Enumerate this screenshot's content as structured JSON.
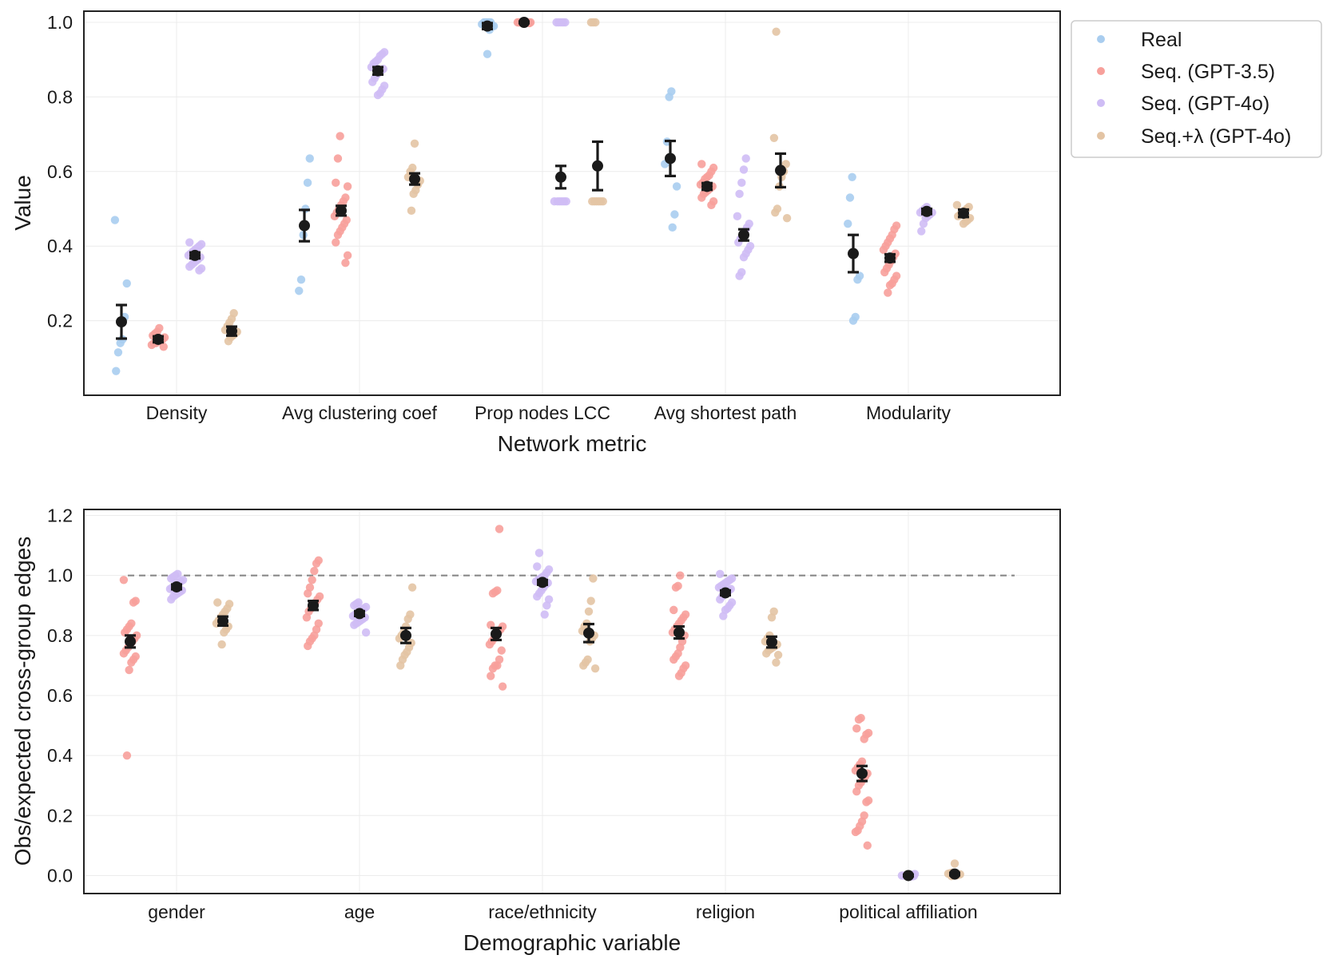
{
  "legend": {
    "entries": [
      {
        "label": "Real",
        "color": "#a9cdef"
      },
      {
        "label": "Seq. (GPT-3.5)",
        "color": "#f7a09b"
      },
      {
        "label": "Seq. (GPT-4o)",
        "color": "#cfbdf5"
      },
      {
        "label": "Seq.+λ (GPT-4o)",
        "color": "#e3c4a4"
      }
    ]
  },
  "chart_data": [
    {
      "type": "scatter",
      "subtype": "strip-plot-with-mean-and-error-bars",
      "title": "",
      "xlabel": "Network metric",
      "ylabel": "Value",
      "ylim": [
        0.0,
        1.03
      ],
      "yticks": [
        0.2,
        0.4,
        0.6,
        0.8,
        1.0
      ],
      "ytick_labels": [
        "0.2",
        "0.4",
        "0.6",
        "0.8",
        "1.0"
      ],
      "categories": [
        "Density",
        "Avg clustering coef",
        "Prop nodes LCC",
        "Avg shortest path",
        "Modularity"
      ],
      "grid": true,
      "legend_position": "outside top-right",
      "series": [
        {
          "name": "Real",
          "mean": [
            0.197,
            0.455,
            0.99,
            0.635,
            0.38
          ],
          "err": [
            0.045,
            0.042,
            0.008,
            0.047,
            0.05
          ],
          "points": [
            [
              0.47,
              0.3,
              0.21,
              0.15,
              0.14,
              0.115,
              0.065
            ],
            [
              0.635,
              0.57,
              0.5,
              0.43,
              0.31,
              0.28
            ],
            [
              1.0,
              1.0,
              1.0,
              1.0,
              0.995,
              0.99,
              0.99,
              0.98,
              0.915
            ],
            [
              0.815,
              0.8,
              0.68,
              0.62,
              0.56,
              0.485,
              0.45
            ],
            [
              0.585,
              0.53,
              0.46,
              0.32,
              0.31,
              0.21,
              0.2
            ]
          ]
        },
        {
          "name": "Seq. (GPT-3.5)",
          "mean": [
            0.15,
            0.495,
            1.0,
            0.56,
            0.368
          ],
          "err": [
            0.008,
            0.013,
            0.002,
            0.009,
            0.01
          ],
          "points": [
            [
              0.18,
              0.17,
              0.165,
              0.16,
              0.155,
              0.15,
              0.15,
              0.145,
              0.14,
              0.14,
              0.135,
              0.13
            ],
            [
              0.695,
              0.635,
              0.57,
              0.56,
              0.53,
              0.52,
              0.51,
              0.5,
              0.49,
              0.48,
              0.47,
              0.46,
              0.45,
              0.44,
              0.43,
              0.41,
              0.375,
              0.355
            ],
            [
              1.0,
              1.0,
              1.0,
              1.0,
              1.0,
              1.0,
              1.0,
              1.0,
              1.0,
              0.998
            ],
            [
              0.62,
              0.61,
              0.6,
              0.59,
              0.585,
              0.58,
              0.57,
              0.565,
              0.56,
              0.555,
              0.55,
              0.545,
              0.54,
              0.53,
              0.52,
              0.51
            ],
            [
              0.455,
              0.445,
              0.43,
              0.42,
              0.41,
              0.4,
              0.39,
              0.38,
              0.37,
              0.36,
              0.35,
              0.34,
              0.33,
              0.32,
              0.31,
              0.3,
              0.295,
              0.275
            ]
          ]
        },
        {
          "name": "Seq. (GPT-4o)",
          "mean": [
            0.375,
            0.87,
            0.585,
            0.43,
            0.493
          ],
          "err": [
            0.008,
            0.01,
            0.03,
            0.015,
            0.007
          ],
          "points": [
            [
              0.41,
              0.405,
              0.4,
              0.395,
              0.39,
              0.385,
              0.38,
              0.375,
              0.37,
              0.365,
              0.36,
              0.355,
              0.35,
              0.345,
              0.34,
              0.335
            ],
            [
              0.92,
              0.915,
              0.91,
              0.9,
              0.895,
              0.89,
              0.88,
              0.875,
              0.87,
              0.865,
              0.86,
              0.85,
              0.84,
              0.83,
              0.82,
              0.81,
              0.805
            ],
            [
              1.0,
              1.0,
              1.0,
              1.0,
              1.0,
              0.52,
              0.52,
              0.52,
              0.52,
              0.52,
              0.52
            ],
            [
              0.635,
              0.605,
              0.57,
              0.54,
              0.48,
              0.46,
              0.45,
              0.44,
              0.43,
              0.42,
              0.41,
              0.4,
              0.39,
              0.38,
              0.37,
              0.33,
              0.32
            ],
            [
              0.505,
              0.5,
              0.495,
              0.49,
              0.49,
              0.485,
              0.48,
              0.475,
              0.46,
              0.44
            ]
          ]
        },
        {
          "name": "Seq.+λ (GPT-4o)",
          "mean": [
            0.172,
            0.58,
            0.615,
            0.603,
            0.488
          ],
          "err": [
            0.012,
            0.015,
            0.065,
            0.045,
            0.01
          ],
          "points": [
            [
              0.22,
              0.205,
              0.195,
              0.185,
              0.175,
              0.17,
              0.165,
              0.16,
              0.155,
              0.145
            ],
            [
              0.675,
              0.61,
              0.6,
              0.585,
              0.575,
              0.565,
              0.55,
              0.54,
              0.495
            ],
            [
              1.0,
              1.0,
              1.0,
              0.52,
              0.52,
              0.52,
              0.52,
              0.52,
              0.52
            ],
            [
              0.975,
              0.69,
              0.62,
              0.6,
              0.585,
              0.56,
              0.5,
              0.49,
              0.475
            ],
            [
              0.51,
              0.505,
              0.5,
              0.495,
              0.49,
              0.485,
              0.48,
              0.475,
              0.47,
              0.465,
              0.46
            ]
          ]
        }
      ]
    },
    {
      "type": "scatter",
      "subtype": "strip-plot-with-mean-and-error-bars",
      "title": "",
      "xlabel": "Demographic variable",
      "ylabel": "Obs/expected cross-group edges",
      "ylim": [
        -0.06,
        1.22
      ],
      "yticks": [
        0.0,
        0.2,
        0.4,
        0.6,
        0.8,
        1.0,
        1.2
      ],
      "ytick_labels": [
        "0.0",
        "0.2",
        "0.4",
        "0.6",
        "0.8",
        "1.0",
        "1.2"
      ],
      "reference_line": 1.0,
      "categories": [
        "gender",
        "age",
        "race/ethnicity",
        "religion",
        "political affiliation"
      ],
      "grid": true,
      "series": [
        {
          "name": "Seq. (GPT-3.5)",
          "mean": [
            0.78,
            0.9,
            0.805,
            0.81,
            0.34
          ],
          "err": [
            0.02,
            0.015,
            0.02,
            0.02,
            0.025
          ],
          "points": [
            [
              0.985,
              0.915,
              0.91,
              0.84,
              0.83,
              0.82,
              0.81,
              0.8,
              0.79,
              0.78,
              0.77,
              0.76,
              0.75,
              0.74,
              0.73,
              0.72,
              0.71,
              0.685,
              0.4
            ],
            [
              1.05,
              1.04,
              1.015,
              0.985,
              0.96,
              0.94,
              0.93,
              0.92,
              0.91,
              0.9,
              0.89,
              0.88,
              0.86,
              0.84,
              0.82,
              0.8,
              0.79,
              0.78,
              0.765
            ],
            [
              1.155,
              0.95,
              0.945,
              0.94,
              0.835,
              0.83,
              0.82,
              0.81,
              0.8,
              0.79,
              0.78,
              0.77,
              0.75,
              0.72,
              0.7,
              0.7,
              0.69,
              0.665,
              0.63
            ],
            [
              1.0,
              0.965,
              0.96,
              0.885,
              0.87,
              0.86,
              0.85,
              0.84,
              0.83,
              0.82,
              0.81,
              0.8,
              0.78,
              0.76,
              0.74,
              0.73,
              0.72,
              0.7,
              0.69,
              0.675,
              0.665
            ],
            [
              0.525,
              0.52,
              0.49,
              0.475,
              0.47,
              0.455,
              0.38,
              0.37,
              0.36,
              0.35,
              0.34,
              0.33,
              0.32,
              0.31,
              0.3,
              0.28,
              0.25,
              0.245,
              0.2,
              0.18,
              0.165,
              0.15,
              0.145,
              0.1
            ]
          ]
        },
        {
          "name": "Seq. (GPT-4o)",
          "mean": [
            0.962,
            0.873,
            0.977,
            0.942,
            0.0
          ],
          "err": [
            0.008,
            0.008,
            0.008,
            0.008,
            0.003
          ],
          "points": [
            [
              1.005,
              1.0,
              0.995,
              0.99,
              0.985,
              0.98,
              0.975,
              0.97,
              0.965,
              0.96,
              0.955,
              0.95,
              0.945,
              0.94,
              0.935,
              0.93,
              0.92
            ],
            [
              0.91,
              0.905,
              0.9,
              0.895,
              0.89,
              0.885,
              0.88,
              0.875,
              0.87,
              0.865,
              0.86,
              0.855,
              0.85,
              0.845,
              0.84,
              0.835,
              0.81
            ],
            [
              1.075,
              1.03,
              1.02,
              1.01,
              1.0,
              0.995,
              0.99,
              0.985,
              0.98,
              0.975,
              0.97,
              0.96,
              0.95,
              0.94,
              0.93,
              0.92,
              0.9,
              0.87
            ],
            [
              1.005,
              0.99,
              0.985,
              0.98,
              0.975,
              0.97,
              0.965,
              0.96,
              0.955,
              0.95,
              0.945,
              0.94,
              0.93,
              0.92,
              0.91,
              0.9,
              0.89,
              0.885,
              0.865
            ],
            [
              0.005,
              0.003,
              0.002,
              0.0,
              0.0,
              0.0,
              0.0,
              -0.002,
              -0.003,
              -0.004
            ]
          ]
        },
        {
          "name": "Seq.+λ (GPT-4o)",
          "mean": [
            0.848,
            0.8,
            0.808,
            0.778,
            0.005
          ],
          "err": [
            0.015,
            0.025,
            0.03,
            0.018,
            0.004
          ],
          "points": [
            [
              0.91,
              0.905,
              0.89,
              0.88,
              0.87,
              0.86,
              0.85,
              0.84,
              0.83,
              0.82,
              0.81,
              0.77
            ],
            [
              0.96,
              0.87,
              0.855,
              0.83,
              0.81,
              0.8,
              0.79,
              0.775,
              0.76,
              0.745,
              0.735,
              0.72,
              0.7
            ],
            [
              0.99,
              0.915,
              0.88,
              0.84,
              0.83,
              0.815,
              0.8,
              0.79,
              0.78,
              0.72,
              0.71,
              0.7,
              0.69
            ],
            [
              0.88,
              0.86,
              0.8,
              0.79,
              0.78,
              0.77,
              0.765,
              0.76,
              0.755,
              0.75,
              0.74,
              0.735,
              0.71
            ],
            [
              0.04,
              0.01,
              0.008,
              0.006,
              0.004,
              0.002,
              0.0,
              0.0,
              -0.002
            ]
          ]
        }
      ]
    }
  ]
}
